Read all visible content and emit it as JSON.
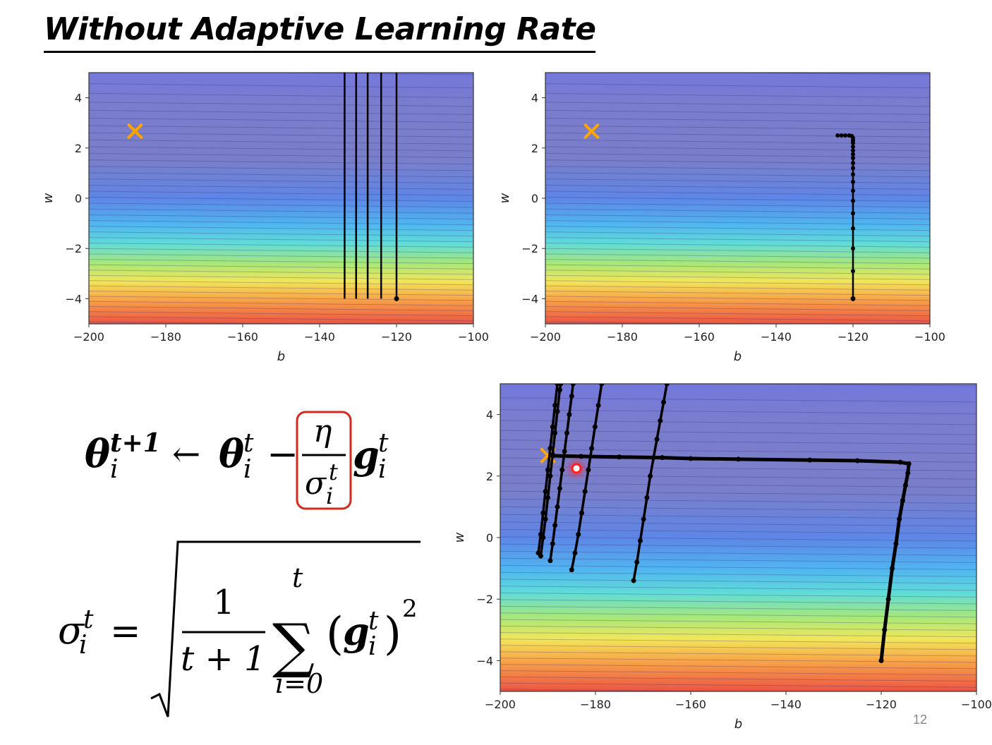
{
  "slide": {
    "title": "Without Adaptive Learning Rate",
    "page_number": "12"
  },
  "formula": {
    "update_rule": {
      "theta": "θ",
      "sup_next": "t+1",
      "sup": "t",
      "sub": "i",
      "arrow": "←",
      "minus": "−",
      "eta": "η",
      "sigma": "σ",
      "g": "g"
    },
    "sigma_def": {
      "sigma": "σ",
      "sup": "t",
      "sub": "i",
      "equals": "=",
      "numerator": "1",
      "denominator": "t + 1",
      "sum_symbol": "∑",
      "sum_upper": "t",
      "sum_lower": "i=0",
      "open_paren": "(",
      "close_paren": ")",
      "g": "g",
      "power": "2"
    },
    "highlight_color": "#d42a1e"
  },
  "colors": {
    "target_marker": "#ffa500",
    "path": "#000000",
    "final_marker": "#ff2020"
  },
  "chart_data": [
    {
      "type": "contour",
      "xlabel": "b",
      "ylabel": "w",
      "xlim": [
        -200,
        -100
      ],
      "ylim": [
        -5,
        5
      ],
      "xticks": [
        -200,
        -180,
        -160,
        -140,
        -120,
        -100
      ],
      "yticks": [
        -4,
        -2,
        0,
        2,
        4
      ],
      "target": {
        "b": -188,
        "w": 2.67
      },
      "paths": [
        {
          "points": [
            [
              -120,
              -4
            ],
            [
              -120,
              5
            ]
          ]
        },
        {
          "points": [
            [
              -124,
              -4
            ],
            [
              -124,
              5
            ]
          ]
        },
        {
          "points": [
            [
              -127.5,
              -4
            ],
            [
              -127.5,
              5
            ]
          ]
        },
        {
          "points": [
            [
              -130.5,
              -4
            ],
            [
              -130.5,
              5
            ]
          ]
        },
        {
          "points": [
            [
              -133.5,
              -4
            ],
            [
              -133.5,
              5
            ]
          ]
        }
      ],
      "start_point": {
        "b": -120,
        "w": -4
      }
    },
    {
      "type": "contour",
      "xlabel": "b",
      "ylabel": "w",
      "xlim": [
        -200,
        -100
      ],
      "ylim": [
        -5,
        5
      ],
      "xticks": [
        -200,
        -180,
        -160,
        -140,
        -120,
        -100
      ],
      "yticks": [
        -4,
        -2,
        0,
        2,
        4
      ],
      "target": {
        "b": -188,
        "w": 2.67
      },
      "paths": [
        {
          "points": [
            [
              -120,
              -4
            ],
            [
              -120,
              -2.9
            ],
            [
              -120,
              -2
            ],
            [
              -120,
              -1.2
            ],
            [
              -120,
              -0.6
            ],
            [
              -120,
              -0.1
            ],
            [
              -120,
              0.3
            ],
            [
              -120,
              0.65
            ],
            [
              -120,
              0.95
            ],
            [
              -120,
              1.2
            ],
            [
              -120,
              1.4
            ],
            [
              -120,
              1.6
            ],
            [
              -120,
              1.75
            ],
            [
              -120,
              1.9
            ],
            [
              -120,
              2.05
            ],
            [
              -120,
              2.2
            ],
            [
              -120,
              2.3
            ],
            [
              -120,
              2.4
            ],
            [
              -120.3,
              2.48
            ],
            [
              -121,
              2.5
            ],
            [
              -122,
              2.5
            ],
            [
              -123,
              2.5
            ],
            [
              -124,
              2.5
            ]
          ]
        }
      ],
      "start_point": {
        "b": -120,
        "w": -4
      }
    },
    {
      "type": "contour",
      "xlabel": "b",
      "ylabel": "w",
      "xlim": [
        -200,
        -100
      ],
      "ylim": [
        -5,
        5
      ],
      "xticks": [
        -200,
        -180,
        -160,
        -140,
        -120,
        -100
      ],
      "yticks": [
        -4,
        -2,
        0,
        2,
        4
      ],
      "target": {
        "b": -190,
        "w": 2.67
      },
      "final_point": {
        "b": -184,
        "w": 2.25
      },
      "paths": [
        {
          "points": [
            [
              -120,
              -4
            ],
            [
              -119.3,
              -3.0
            ],
            [
              -118.5,
              -2.0
            ],
            [
              -117.7,
              -1.0
            ],
            [
              -116.9,
              -0.2
            ],
            [
              -116.2,
              0.6
            ],
            [
              -115.5,
              1.2
            ],
            [
              -114.9,
              1.7
            ],
            [
              -114.4,
              2.1
            ],
            [
              -114.2,
              2.4
            ],
            [
              -116,
              2.45
            ],
            [
              -125,
              2.5
            ],
            [
              -135,
              2.52
            ],
            [
              -150,
              2.55
            ],
            [
              -160,
              2.57
            ],
            [
              -166,
              2.6
            ],
            [
              -175,
              2.62
            ],
            [
              -183,
              2.64
            ],
            [
              -189,
              2.66
            ]
          ]
        },
        {
          "points": [
            [
              -172,
              -1.4
            ],
            [
              -171.3,
              -0.8
            ],
            [
              -170.6,
              -0.1
            ],
            [
              -169.9,
              0.6
            ],
            [
              -169.2,
              1.3
            ],
            [
              -168.5,
              2.0
            ],
            [
              -167.8,
              2.6
            ],
            [
              -167.1,
              3.2
            ],
            [
              -166.4,
              3.8
            ],
            [
              -165.7,
              4.4
            ],
            [
              -165,
              5
            ]
          ]
        },
        {
          "points": [
            [
              -185,
              -1.05
            ],
            [
              -184.3,
              -0.5
            ],
            [
              -183.6,
              0.1
            ],
            [
              -182.9,
              0.8
            ],
            [
              -182.2,
              1.5
            ],
            [
              -181.5,
              2.2
            ],
            [
              -180.8,
              2.9
            ],
            [
              -180.1,
              3.6
            ],
            [
              -179.4,
              4.3
            ],
            [
              -178.7,
              5
            ]
          ]
        },
        {
          "points": [
            [
              -189.5,
              -0.75
            ],
            [
              -189.0,
              -0.2
            ],
            [
              -188.5,
              0.4
            ],
            [
              -188.0,
              1.0
            ],
            [
              -187.5,
              1.6
            ],
            [
              -187.0,
              2.2
            ],
            [
              -186.5,
              2.8
            ],
            [
              -186.0,
              3.4
            ],
            [
              -185.5,
              4.0
            ],
            [
              -185.0,
              4.6
            ],
            [
              -184.7,
              5
            ]
          ]
        },
        {
          "points": [
            [
              -191.5,
              -0.6
            ],
            [
              -191.0,
              0.0
            ],
            [
              -190.5,
              0.6
            ],
            [
              -190.0,
              1.3
            ],
            [
              -189.5,
              2.0
            ],
            [
              -189.0,
              2.7
            ],
            [
              -188.5,
              3.4
            ],
            [
              -188.0,
              4.1
            ],
            [
              -187.5,
              4.8
            ],
            [
              -187.3,
              5
            ]
          ]
        },
        {
          "points": [
            [
              -192,
              -0.5
            ],
            [
              -191.5,
              0.1
            ],
            [
              -191,
              0.8
            ],
            [
              -190.5,
              1.5
            ],
            [
              -190,
              2.2
            ],
            [
              -189.5,
              2.9
            ],
            [
              -189,
              3.6
            ],
            [
              -188.5,
              4.3
            ],
            [
              -188,
              5
            ]
          ]
        }
      ],
      "start_point": {
        "b": -120,
        "w": -4
      }
    }
  ]
}
